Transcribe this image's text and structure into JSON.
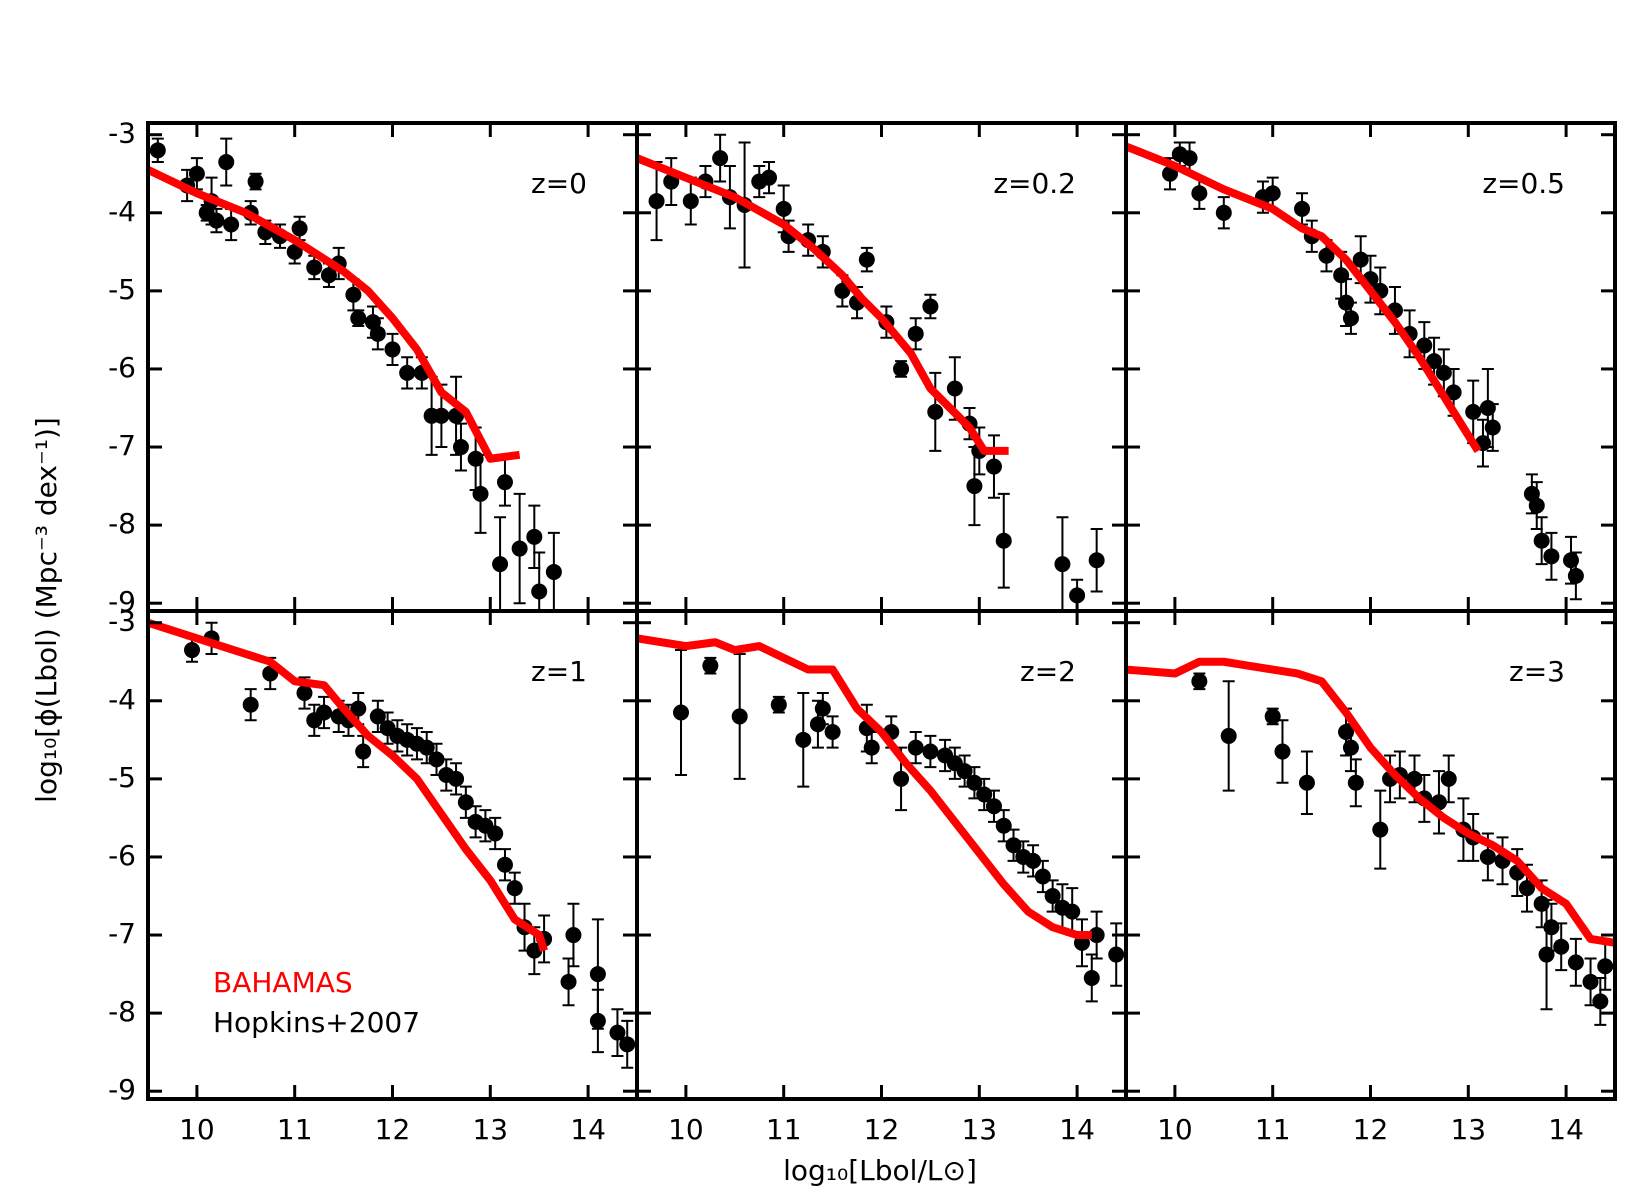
{
  "xlabel": "log₁₀[Lbol/L⊙]",
  "ylabel": "log₁₀[ϕ(Lbol)  (Mpc⁻³ dex⁻¹)]",
  "chart_data": [
    {
      "type": "line",
      "label": "z=0",
      "xlim": [
        9.5,
        14.5
      ],
      "ylim": [
        -9.1,
        -2.85
      ],
      "xticks": [
        10,
        11,
        12,
        13,
        14
      ],
      "yticks": [
        -3,
        -4,
        -5,
        -6,
        -7,
        -8,
        -9
      ],
      "series": [
        {
          "style": "line",
          "color": "#ff0000",
          "x": [
            9.5,
            10,
            10.5,
            11,
            11.5,
            11.75,
            12,
            12.25,
            12.5,
            12.75,
            13,
            13.3
          ],
          "values": [
            -3.45,
            -3.75,
            -4.0,
            -4.35,
            -4.75,
            -5.0,
            -5.35,
            -5.75,
            -6.3,
            -6.55,
            -7.15,
            -7.1
          ]
        },
        {
          "style": "points",
          "color": "#000000",
          "x": [
            9.6,
            9.9,
            10.0,
            10.15,
            10.3,
            10.1,
            10.2,
            10.35,
            10.55,
            10.6,
            10.7,
            10.85,
            11.0,
            11.05,
            11.2,
            11.35,
            11.45,
            11.6,
            11.65,
            11.8,
            11.85,
            12.0,
            12.15,
            12.3,
            12.4,
            12.5,
            12.65,
            12.7,
            12.85,
            12.9,
            13.1,
            13.15,
            13.3,
            13.45,
            13.5,
            13.65
          ],
          "values": [
            -3.2,
            -3.65,
            -3.5,
            -3.85,
            -3.35,
            -4.0,
            -4.1,
            -4.15,
            -4.0,
            -3.6,
            -4.25,
            -4.3,
            -4.5,
            -4.2,
            -4.7,
            -4.8,
            -4.65,
            -5.05,
            -5.35,
            -5.4,
            -5.55,
            -5.75,
            -6.05,
            -6.05,
            -6.6,
            -6.6,
            -6.6,
            -7.0,
            -7.15,
            -7.6,
            -8.5,
            -7.45,
            -8.3,
            -8.15,
            -8.85,
            -8.6
          ],
          "errors": [
            0.15,
            0.2,
            0.2,
            0.3,
            0.3,
            0.1,
            0.15,
            0.2,
            0.15,
            0.1,
            0.15,
            0.15,
            0.15,
            0.15,
            0.15,
            0.15,
            0.2,
            0.2,
            0.1,
            0.2,
            0.2,
            0.2,
            0.2,
            0.2,
            0.5,
            0.4,
            0.5,
            0.3,
            0.4,
            0.5,
            0.6,
            0.3,
            0.7,
            0.4,
            0.5,
            0.5
          ]
        }
      ]
    },
    {
      "type": "line",
      "label": "z=0.2",
      "xlim": [
        9.5,
        14.5
      ],
      "ylim": [
        -9.1,
        -2.85
      ],
      "xticks": [
        10,
        11,
        12,
        13,
        14
      ],
      "yticks": [
        -3,
        -4,
        -5,
        -6,
        -7,
        -8,
        -9
      ],
      "series": [
        {
          "style": "line",
          "color": "#ff0000",
          "x": [
            9.5,
            10,
            10.5,
            11,
            11.3,
            11.6,
            11.8,
            12,
            12.3,
            12.5,
            12.7,
            12.9,
            13.05,
            13.3
          ],
          "values": [
            -3.3,
            -3.55,
            -3.8,
            -4.15,
            -4.45,
            -4.8,
            -5.1,
            -5.35,
            -5.8,
            -6.25,
            -6.5,
            -6.75,
            -7.05,
            -7.05
          ]
        },
        {
          "style": "points",
          "color": "#000000",
          "x": [
            9.7,
            9.85,
            10.05,
            10.2,
            10.35,
            10.45,
            10.6,
            10.75,
            10.85,
            11.0,
            11.05,
            11.25,
            11.4,
            11.6,
            11.75,
            11.85,
            12.05,
            12.2,
            12.35,
            12.5,
            12.55,
            12.75,
            12.9,
            12.95,
            13.0,
            13.15,
            13.25,
            13.85,
            14.0,
            14.2
          ],
          "values": [
            -3.85,
            -3.6,
            -3.85,
            -3.6,
            -3.3,
            -3.8,
            -3.9,
            -3.6,
            -3.55,
            -3.95,
            -4.3,
            -4.35,
            -4.5,
            -5.0,
            -5.15,
            -4.6,
            -5.4,
            -6.0,
            -5.55,
            -5.2,
            -6.55,
            -6.25,
            -6.7,
            -7.5,
            -7.05,
            -7.25,
            -8.2,
            -8.5,
            -8.9,
            -8.45
          ],
          "errors": [
            0.5,
            0.3,
            0.3,
            0.2,
            0.3,
            0.4,
            0.8,
            0.2,
            0.2,
            0.3,
            0.2,
            0.2,
            0.2,
            0.2,
            0.2,
            0.15,
            0.2,
            0.1,
            0.2,
            0.15,
            0.5,
            0.4,
            0.2,
            0.5,
            0.3,
            0.4,
            0.6,
            0.6,
            0.2,
            0.4
          ]
        }
      ]
    },
    {
      "type": "line",
      "label": "z=0.5",
      "xlim": [
        9.5,
        14.5
      ],
      "ylim": [
        -9.1,
        -2.85
      ],
      "xticks": [
        10,
        11,
        12,
        13,
        14
      ],
      "yticks": [
        -3,
        -4,
        -5,
        -6,
        -7,
        -8,
        -9
      ],
      "series": [
        {
          "style": "line",
          "color": "#ff0000",
          "x": [
            9.5,
            10,
            10.5,
            11,
            11.3,
            11.5,
            11.75,
            12,
            12.25,
            12.5,
            12.75,
            13,
            13.1
          ],
          "values": [
            -3.15,
            -3.4,
            -3.7,
            -3.95,
            -4.2,
            -4.3,
            -4.6,
            -5.0,
            -5.4,
            -5.85,
            -6.35,
            -6.85,
            -7.05
          ]
        },
        {
          "style": "points",
          "color": "#000000",
          "x": [
            9.95,
            10.05,
            10.15,
            10.25,
            10.5,
            10.9,
            11.0,
            11.3,
            11.4,
            11.55,
            11.7,
            11.75,
            11.8,
            11.9,
            12.0,
            12.1,
            12.25,
            12.4,
            12.55,
            12.65,
            12.75,
            12.85,
            13.05,
            13.15,
            13.2,
            13.25,
            13.65,
            13.7,
            13.75,
            13.85,
            14.05,
            14.1
          ],
          "values": [
            -3.5,
            -3.25,
            -3.3,
            -3.75,
            -4.0,
            -3.8,
            -3.75,
            -3.95,
            -4.3,
            -4.55,
            -4.8,
            -5.15,
            -5.35,
            -4.6,
            -4.85,
            -5.0,
            -5.25,
            -5.55,
            -5.7,
            -5.9,
            -6.05,
            -6.3,
            -6.55,
            -6.95,
            -6.5,
            -6.75,
            -7.6,
            -7.75,
            -8.2,
            -8.4,
            -8.45,
            -8.65
          ],
          "errors": [
            0.2,
            0.15,
            0.2,
            0.2,
            0.2,
            0.2,
            0.2,
            0.2,
            0.2,
            0.2,
            0.3,
            0.3,
            0.2,
            0.3,
            0.3,
            0.3,
            0.3,
            0.3,
            0.3,
            0.3,
            0.3,
            0.3,
            0.4,
            0.3,
            0.5,
            0.3,
            0.25,
            0.3,
            0.3,
            0.3,
            0.3,
            0.3
          ]
        }
      ]
    },
    {
      "type": "line",
      "label": "z=1",
      "legend": "lower left",
      "xlim": [
        9.5,
        14.5
      ],
      "ylim": [
        -9.1,
        -2.85
      ],
      "xticks": [
        10,
        11,
        12,
        13,
        14
      ],
      "yticks": [
        -3,
        -4,
        -5,
        -6,
        -7,
        -8,
        -9
      ],
      "series": [
        {
          "name": "BAHAMAS",
          "style": "line",
          "color": "#ff0000",
          "x": [
            9.5,
            10,
            10.5,
            10.75,
            11,
            11.3,
            11.5,
            11.75,
            12,
            12.25,
            12.5,
            12.75,
            13,
            13.25,
            13.5,
            13.55
          ],
          "values": [
            -3.0,
            -3.2,
            -3.4,
            -3.5,
            -3.75,
            -3.8,
            -4.1,
            -4.45,
            -4.7,
            -5.0,
            -5.45,
            -5.9,
            -6.3,
            -6.8,
            -7.0,
            -7.2
          ]
        },
        {
          "name": "Hopkins+2007",
          "style": "points",
          "color": "#000000",
          "x": [
            9.95,
            10.15,
            10.55,
            10.75,
            11.1,
            11.2,
            11.3,
            11.45,
            11.55,
            11.65,
            11.7,
            11.85,
            11.95,
            12.05,
            12.15,
            12.25,
            12.35,
            12.45,
            12.55,
            12.65,
            12.75,
            12.85,
            12.95,
            13.05,
            13.15,
            13.25,
            13.35,
            13.45,
            13.55,
            13.8,
            13.85,
            14.1,
            14.1,
            14.3,
            14.4
          ],
          "values": [
            -3.35,
            -3.2,
            -4.05,
            -3.65,
            -3.9,
            -4.25,
            -4.15,
            -4.2,
            -4.25,
            -4.1,
            -4.65,
            -4.2,
            -4.35,
            -4.45,
            -4.5,
            -4.55,
            -4.6,
            -4.75,
            -4.95,
            -5.0,
            -5.3,
            -5.55,
            -5.6,
            -5.7,
            -6.1,
            -6.4,
            -6.9,
            -7.2,
            -7.05,
            -7.6,
            -7.0,
            -7.5,
            -8.1,
            -8.25,
            -8.4
          ],
          "errors": [
            0.15,
            0.2,
            0.2,
            0.2,
            0.2,
            0.2,
            0.2,
            0.2,
            0.2,
            0.2,
            0.2,
            0.2,
            0.2,
            0.2,
            0.2,
            0.2,
            0.2,
            0.2,
            0.2,
            0.2,
            0.2,
            0.2,
            0.2,
            0.2,
            0.2,
            0.2,
            0.3,
            0.3,
            0.3,
            0.3,
            0.4,
            0.7,
            0.4,
            0.3,
            0.3
          ]
        }
      ]
    },
    {
      "type": "line",
      "label": "z=2",
      "xlim": [
        9.5,
        14.5
      ],
      "ylim": [
        -9.1,
        -2.85
      ],
      "xticks": [
        10,
        11,
        12,
        13,
        14
      ],
      "yticks": [
        -3,
        -4,
        -5,
        -6,
        -7,
        -8,
        -9
      ],
      "series": [
        {
          "style": "line",
          "color": "#ff0000",
          "x": [
            9.5,
            10,
            10.3,
            10.5,
            10.75,
            11,
            11.25,
            11.5,
            11.75,
            12,
            12.25,
            12.5,
            12.75,
            13,
            13.25,
            13.5,
            13.75,
            14,
            14.15
          ],
          "values": [
            -3.2,
            -3.3,
            -3.25,
            -3.35,
            -3.3,
            -3.45,
            -3.6,
            -3.6,
            -4.1,
            -4.4,
            -4.8,
            -5.15,
            -5.55,
            -5.95,
            -6.35,
            -6.7,
            -6.9,
            -7.0,
            -7.0
          ]
        },
        {
          "style": "points",
          "color": "#000000",
          "x": [
            9.95,
            10.25,
            10.55,
            10.95,
            11.2,
            11.35,
            11.4,
            11.5,
            11.85,
            11.9,
            12.1,
            12.2,
            12.35,
            12.5,
            12.65,
            12.75,
            12.85,
            12.95,
            13.05,
            13.15,
            13.25,
            13.35,
            13.45,
            13.55,
            13.65,
            13.75,
            13.85,
            13.95,
            14.05,
            14.15,
            14.2,
            14.4
          ],
          "values": [
            -4.15,
            -3.55,
            -4.2,
            -4.05,
            -4.5,
            -4.3,
            -4.1,
            -4.4,
            -4.35,
            -4.6,
            -4.4,
            -5.0,
            -4.6,
            -4.65,
            -4.7,
            -4.8,
            -4.9,
            -5.05,
            -5.2,
            -5.35,
            -5.6,
            -5.85,
            -6.0,
            -6.05,
            -6.25,
            -6.5,
            -6.65,
            -6.7,
            -7.1,
            -7.55,
            -7.0,
            -7.25
          ],
          "errors": [
            0.8,
            0.1,
            0.8,
            0.1,
            0.6,
            0.3,
            0.2,
            0.2,
            0.3,
            0.2,
            0.2,
            0.4,
            0.2,
            0.2,
            0.2,
            0.2,
            0.2,
            0.2,
            0.2,
            0.2,
            0.2,
            0.2,
            0.2,
            0.2,
            0.2,
            0.2,
            0.3,
            0.3,
            0.3,
            0.3,
            0.3,
            0.4
          ]
        }
      ]
    },
    {
      "type": "line",
      "label": "z=3",
      "xlim": [
        9.5,
        14.5
      ],
      "ylim": [
        -9.1,
        -2.85
      ],
      "xticks": [
        10,
        11,
        12,
        13,
        14
      ],
      "yticks": [
        -3,
        -4,
        -5,
        -6,
        -7,
        -8,
        -9
      ],
      "series": [
        {
          "style": "line",
          "color": "#ff0000",
          "x": [
            9.5,
            10,
            10.25,
            10.5,
            10.75,
            11,
            11.25,
            11.5,
            11.75,
            12,
            12.25,
            12.5,
            12.75,
            13,
            13.25,
            13.5,
            13.75,
            14,
            14.25,
            14.5
          ],
          "values": [
            -3.6,
            -3.65,
            -3.5,
            -3.5,
            -3.55,
            -3.6,
            -3.65,
            -3.75,
            -4.15,
            -4.6,
            -4.95,
            -5.25,
            -5.5,
            -5.7,
            -5.85,
            -6.05,
            -6.4,
            -6.6,
            -7.05,
            -7.1
          ]
        },
        {
          "style": "points",
          "color": "#000000",
          "x": [
            10.25,
            10.55,
            11.0,
            11.1,
            11.35,
            11.75,
            11.8,
            11.85,
            12.1,
            12.2,
            12.3,
            12.45,
            12.55,
            12.7,
            12.8,
            12.95,
            13.05,
            13.2,
            13.35,
            13.5,
            13.6,
            13.75,
            13.8,
            13.85,
            13.95,
            14.1,
            14.25,
            14.35,
            14.4
          ],
          "values": [
            -3.75,
            -4.45,
            -4.2,
            -4.65,
            -5.05,
            -4.4,
            -4.6,
            -5.05,
            -5.65,
            -5.0,
            -4.95,
            -5.0,
            -5.25,
            -5.3,
            -5.0,
            -5.65,
            -5.75,
            -6.0,
            -6.05,
            -6.2,
            -6.4,
            -6.6,
            -7.25,
            -6.9,
            -7.15,
            -7.35,
            -7.6,
            -7.85,
            -7.4
          ],
          "errors": [
            0.1,
            0.7,
            0.1,
            0.4,
            0.4,
            0.3,
            0.3,
            0.3,
            0.5,
            0.3,
            0.3,
            0.3,
            0.3,
            0.4,
            0.3,
            0.4,
            0.3,
            0.3,
            0.3,
            0.3,
            0.3,
            0.3,
            0.7,
            0.3,
            0.3,
            0.3,
            0.3,
            0.3,
            0.3
          ]
        }
      ]
    }
  ]
}
